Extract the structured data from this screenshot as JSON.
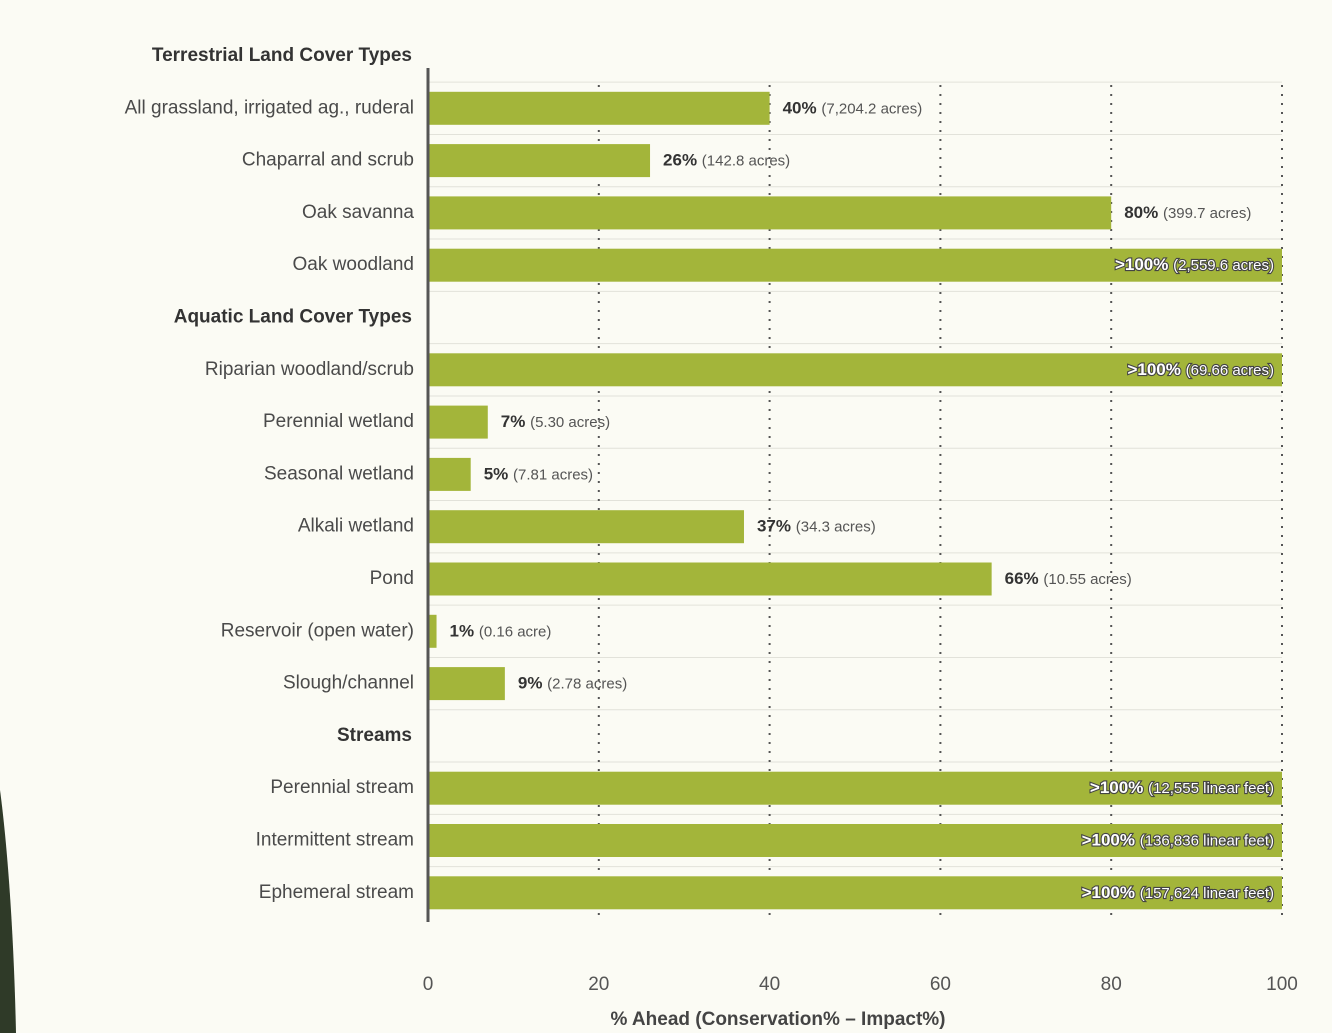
{
  "chart_data": {
    "type": "hbar",
    "categories": [
      "Terrestrial Land Cover Types",
      "All grassland, irrigated ag., ruderal",
      "Chaparral and scrub",
      "Oak savanna",
      "Oak woodland",
      "Aquatic Land Cover Types",
      "Riparian woodland/scrub",
      "Perennial wetland",
      "Seasonal wetland",
      "Alkali wetland",
      "Pond",
      "Reservoir (open water)",
      "Slough/channel",
      "Streams",
      "Perennial stream",
      "Intermittent stream",
      "Ephemeral stream"
    ],
    "values": [
      null,
      40,
      26,
      80,
      100,
      null,
      100,
      7,
      5,
      37,
      66,
      1,
      9,
      null,
      100,
      100,
      100
    ],
    "value_labels": [
      null,
      "40%",
      "26%",
      "80%",
      ">100%",
      null,
      ">100%",
      "7%",
      "5%",
      "37%",
      "66%",
      "1%",
      "9%",
      null,
      ">100%",
      ">100%",
      ">100%"
    ],
    "details": [
      null,
      "(7,204.2 acres)",
      "(142.8 acres)",
      "(399.7 acres)",
      "(2,559.6 acres)",
      null,
      "(69.66 acres)",
      "(5.30 acres)",
      "(7.81 acres)",
      "(34.3 acres)",
      "(10.55 acres)",
      "(0.16 acre)",
      "(2.78 acres)",
      null,
      "(12,555 linear feet)",
      "(136,836 linear feet)",
      "(157,624 linear feet)"
    ],
    "color": "#a3b53a",
    "xlim": [
      0,
      100
    ],
    "xticks": [
      0,
      20,
      40,
      60,
      80,
      100
    ],
    "xlabel": "% Ahead (Conservation% – Impact%)",
    "grid": true
  }
}
